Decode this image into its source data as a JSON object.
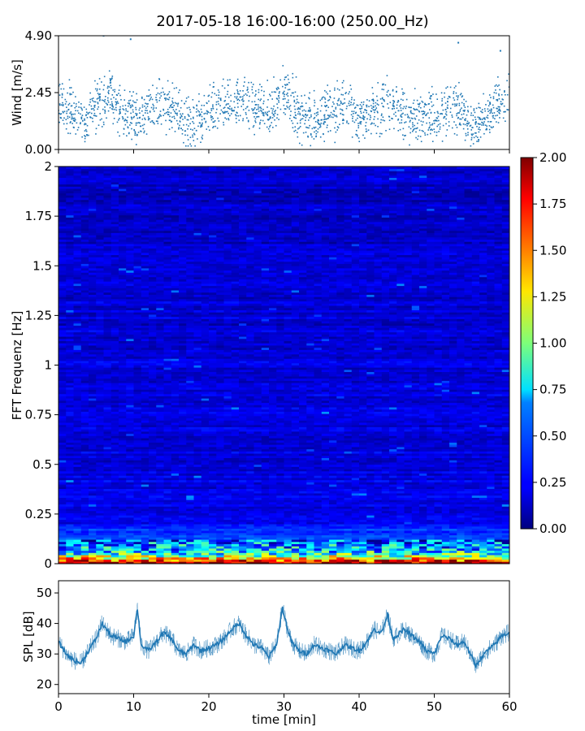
{
  "figure": {
    "title": "2017-05-18 16:00-16:00 (250.00_Hz)"
  },
  "chart_data": [
    {
      "type": "scatter",
      "name_key": "wind",
      "ylabel": "Wind [m/s]",
      "xlim": [
        0,
        60
      ],
      "ylim": [
        0,
        4.9
      ],
      "yticks": [
        0.0,
        2.45,
        4.9
      ],
      "yticklabels": [
        "0.00",
        "2.45",
        "4.90"
      ],
      "color": "#1f77b4",
      "trend": {
        "x": [
          0,
          2,
          3.5,
          5.5,
          7,
          8.5,
          10,
          12,
          14,
          16,
          18,
          20,
          22,
          24,
          26,
          28,
          30,
          32,
          34,
          36,
          38,
          40,
          42,
          44,
          46,
          48,
          50,
          52,
          54,
          55,
          56,
          58,
          60
        ],
        "y": [
          2.1,
          1.6,
          1.1,
          2.1,
          2.4,
          1.5,
          1.3,
          1.6,
          2.0,
          1.4,
          1.1,
          1.6,
          1.9,
          2.1,
          1.8,
          1.6,
          2.4,
          1.6,
          1.3,
          1.6,
          1.8,
          1.4,
          1.6,
          2.0,
          1.5,
          1.4,
          1.5,
          1.9,
          1.6,
          1.0,
          1.2,
          1.7,
          2.3
        ]
      },
      "peaks": [
        {
          "x": 6.0,
          "y": 4.9
        },
        {
          "x": 9.6,
          "y": 4.75
        },
        {
          "x": 53.2,
          "y": 4.6
        },
        {
          "x": 58.8,
          "y": 4.25
        }
      ]
    },
    {
      "type": "heatmap",
      "name_key": "spectrogram",
      "ylabel": "FFT Frequenz [Hz]",
      "xlim": [
        0,
        60
      ],
      "ylim": [
        0,
        2
      ],
      "yticks": [
        0,
        0.25,
        0.5,
        0.75,
        1,
        1.25,
        1.5,
        1.75,
        2
      ],
      "yticklabels": [
        "0",
        "0.25",
        "0.5",
        "0.75",
        "1",
        "1.25",
        "1.5",
        "1.75",
        "2"
      ],
      "colormap": "jet",
      "colorbar": {
        "vmin": 0.0,
        "vmax": 2.0,
        "ticks": [
          0.0,
          0.25,
          0.5,
          0.75,
          1.0,
          1.25,
          1.5,
          1.75,
          2.0
        ],
        "ticklabels": [
          "0.00",
          "0.25",
          "0.50",
          "0.75",
          "1.00",
          "1.25",
          "1.50",
          "1.75",
          "2.00"
        ]
      },
      "background_level": 0.2,
      "low_frequency_levels": [
        {
          "f": 0.01,
          "level": 1.9
        },
        {
          "f": 0.03,
          "level": 1.2
        },
        {
          "f": 0.06,
          "level": 0.7
        },
        {
          "f": 0.1,
          "level": 0.45
        },
        {
          "f": 0.2,
          "level": 0.3
        }
      ]
    },
    {
      "type": "line",
      "name_key": "spl",
      "ylabel": "SPL [dB]",
      "xlabel": "time [min]",
      "xlim": [
        0,
        60
      ],
      "ylim": [
        17,
        54
      ],
      "yticks": [
        20,
        30,
        40,
        50
      ],
      "yticklabels": [
        "20",
        "30",
        "40",
        "50"
      ],
      "xticks": [
        0,
        10,
        20,
        30,
        40,
        50,
        60
      ],
      "xticklabels": [
        "0",
        "10",
        "20",
        "30",
        "40",
        "50",
        "60"
      ],
      "color": "#1f77b4",
      "x": [
        0,
        1,
        2,
        3,
        4,
        5,
        5.8,
        7,
        8,
        9,
        10,
        10.5,
        11,
        12,
        13,
        14,
        15,
        16,
        17,
        18,
        19,
        20,
        21,
        22,
        23,
        24,
        25,
        26,
        27,
        28,
        29,
        29.8,
        30.5,
        31,
        32,
        33,
        34,
        35,
        36,
        37,
        38,
        39,
        40,
        41,
        42,
        43,
        43.8,
        44.5,
        45,
        46,
        47,
        48,
        49,
        50,
        51,
        52,
        53,
        54,
        55,
        55.5,
        56,
        57,
        58,
        59,
        60
      ],
      "y": [
        34,
        30,
        28,
        27,
        31,
        35,
        40,
        36,
        35,
        34,
        36,
        45,
        33,
        31,
        34,
        37,
        35,
        31,
        30,
        33,
        31,
        32,
        33,
        35,
        38,
        40,
        36,
        33,
        32,
        29,
        33,
        45,
        38,
        34,
        31,
        30,
        33,
        32,
        31,
        30,
        33,
        32,
        31,
        34,
        38,
        37,
        43,
        35,
        36,
        38,
        36,
        34,
        31,
        30,
        36,
        35,
        33,
        34,
        29,
        26,
        28,
        31,
        33,
        36,
        37
      ]
    }
  ]
}
